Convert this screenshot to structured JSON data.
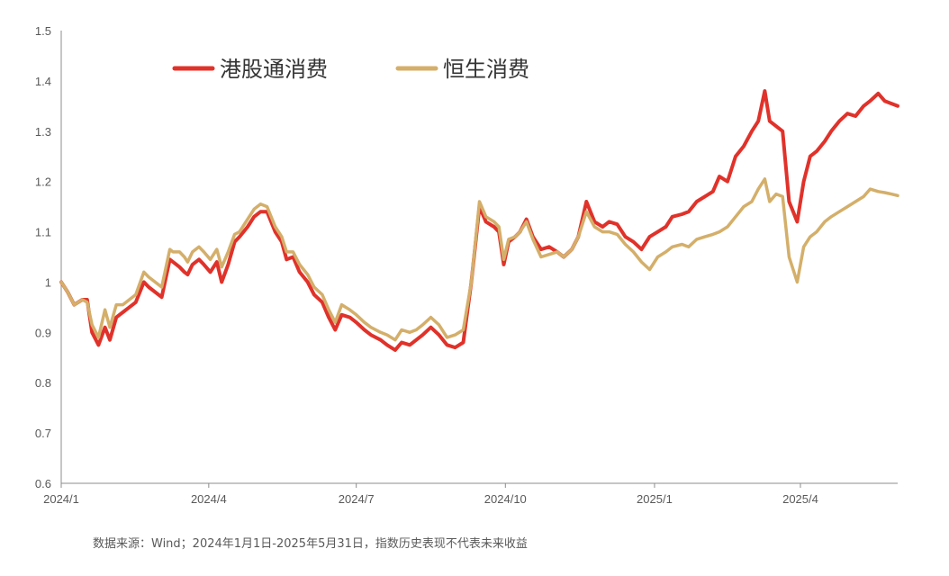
{
  "chart_data": {
    "type": "line",
    "title": "",
    "xlabel": "",
    "ylabel": "",
    "ylim": [
      0.6,
      1.5
    ],
    "yticks": [
      "0.6",
      "0.7",
      "0.8",
      "0.9",
      "1",
      "1.1",
      "1.2",
      "1.3",
      "1.4",
      "1.5"
    ],
    "xlim": [
      "2024-01-01",
      "2025-05-31"
    ],
    "xticks": [
      {
        "label": "2024/1",
        "date": "2024-01-01"
      },
      {
        "label": "2024/4",
        "date": "2024-04-01"
      },
      {
        "label": "2024/7",
        "date": "2024-07-01"
      },
      {
        "label": "2024/10",
        "date": "2024-10-01"
      },
      {
        "label": "2025/1",
        "date": "2025-01-01"
      },
      {
        "label": "2025/4",
        "date": "2025-04-01"
      }
    ],
    "grid": false,
    "legend_position": "top-left",
    "series": [
      {
        "name": "港股通消费",
        "color": "#E0322A",
        "x": [
          "2024-01-01",
          "2024-01-05",
          "2024-01-09",
          "2024-01-14",
          "2024-01-17",
          "2024-01-20",
          "2024-01-24",
          "2024-01-28",
          "2024-01-31",
          "2024-02-04",
          "2024-02-08",
          "2024-02-12",
          "2024-02-16",
          "2024-02-21",
          "2024-02-24",
          "2024-03-03",
          "2024-03-08",
          "2024-03-10",
          "2024-03-14",
          "2024-03-17",
          "2024-03-19",
          "2024-03-22",
          "2024-03-26",
          "2024-03-29",
          "2024-04-02",
          "2024-04-06",
          "2024-04-09",
          "2024-04-13",
          "2024-04-17",
          "2024-04-20",
          "2024-04-25",
          "2024-04-29",
          "2024-05-03",
          "2024-05-07",
          "2024-05-12",
          "2024-05-16",
          "2024-05-19",
          "2024-05-23",
          "2024-05-27",
          "2024-06-01",
          "2024-06-05",
          "2024-06-10",
          "2024-06-14",
          "2024-06-18",
          "2024-06-22",
          "2024-06-27",
          "2024-07-01",
          "2024-07-06",
          "2024-07-10",
          "2024-07-16",
          "2024-07-20",
          "2024-07-25",
          "2024-07-29",
          "2024-08-03",
          "2024-08-07",
          "2024-08-11",
          "2024-08-16",
          "2024-08-21",
          "2024-08-26",
          "2024-08-31",
          "2024-09-05",
          "2024-09-10",
          "2024-09-15",
          "2024-09-19",
          "2024-09-24",
          "2024-09-27",
          "2024-09-30",
          "2024-10-03",
          "2024-10-07",
          "2024-10-10",
          "2024-10-14",
          "2024-10-18",
          "2024-10-23",
          "2024-10-28",
          "2024-11-02",
          "2024-11-06",
          "2024-11-11",
          "2024-11-15",
          "2024-11-20",
          "2024-11-25",
          "2024-11-30",
          "2024-12-04",
          "2024-12-09",
          "2024-12-14",
          "2024-12-19",
          "2024-12-24",
          "2024-12-29",
          "2025-01-03",
          "2025-01-08",
          "2025-01-12",
          "2025-01-18",
          "2025-01-22",
          "2025-01-27",
          "2025-02-01",
          "2025-02-06",
          "2025-02-10",
          "2025-02-15",
          "2025-02-20",
          "2025-02-25",
          "2025-03-02",
          "2025-03-06",
          "2025-03-10",
          "2025-03-13",
          "2025-03-17",
          "2025-03-21",
          "2025-03-25",
          "2025-03-30",
          "2025-04-03",
          "2025-04-07",
          "2025-04-11",
          "2025-04-16",
          "2025-04-20",
          "2025-04-25",
          "2025-04-30",
          "2025-05-05",
          "2025-05-10",
          "2025-05-14",
          "2025-05-19",
          "2025-05-23",
          "2025-05-27",
          "2025-05-31"
        ],
        "y": [
          1.0,
          0.98,
          0.955,
          0.965,
          0.965,
          0.9,
          0.875,
          0.91,
          0.885,
          0.93,
          0.94,
          0.95,
          0.96,
          1.0,
          0.99,
          0.97,
          1.045,
          1.04,
          1.03,
          1.02,
          1.015,
          1.035,
          1.045,
          1.035,
          1.02,
          1.04,
          1.0,
          1.035,
          1.08,
          1.09,
          1.11,
          1.13,
          1.14,
          1.14,
          1.1,
          1.08,
          1.045,
          1.05,
          1.02,
          1.0,
          0.975,
          0.96,
          0.93,
          0.905,
          0.935,
          0.93,
          0.92,
          0.905,
          0.895,
          0.885,
          0.875,
          0.865,
          0.88,
          0.875,
          0.885,
          0.895,
          0.91,
          0.895,
          0.875,
          0.87,
          0.88,
          1.0,
          1.15,
          1.12,
          1.11,
          1.1,
          1.035,
          1.08,
          1.09,
          1.1,
          1.125,
          1.09,
          1.065,
          1.07,
          1.06,
          1.05,
          1.065,
          1.09,
          1.16,
          1.12,
          1.11,
          1.12,
          1.115,
          1.09,
          1.08,
          1.065,
          1.09,
          1.1,
          1.11,
          1.13,
          1.135,
          1.14,
          1.16,
          1.17,
          1.18,
          1.21,
          1.2,
          1.25,
          1.27,
          1.3,
          1.32,
          1.38,
          1.32,
          1.31,
          1.3,
          1.16,
          1.12,
          1.2,
          1.25,
          1.26,
          1.28,
          1.3,
          1.32,
          1.335,
          1.33,
          1.35,
          1.36,
          1.375,
          1.36,
          1.355,
          1.35
        ]
      },
      {
        "name": "恒生消费",
        "color": "#D4AF6A",
        "x": [
          "2024-01-01",
          "2024-01-05",
          "2024-01-09",
          "2024-01-14",
          "2024-01-17",
          "2024-01-20",
          "2024-01-24",
          "2024-01-28",
          "2024-01-31",
          "2024-02-04",
          "2024-02-08",
          "2024-02-12",
          "2024-02-16",
          "2024-02-21",
          "2024-02-24",
          "2024-03-03",
          "2024-03-08",
          "2024-03-10",
          "2024-03-14",
          "2024-03-17",
          "2024-03-19",
          "2024-03-22",
          "2024-03-26",
          "2024-03-29",
          "2024-04-02",
          "2024-04-06",
          "2024-04-09",
          "2024-04-13",
          "2024-04-17",
          "2024-04-20",
          "2024-04-25",
          "2024-04-29",
          "2024-05-03",
          "2024-05-07",
          "2024-05-12",
          "2024-05-16",
          "2024-05-19",
          "2024-05-23",
          "2024-05-27",
          "2024-06-01",
          "2024-06-05",
          "2024-06-10",
          "2024-06-14",
          "2024-06-18",
          "2024-06-22",
          "2024-06-27",
          "2024-07-01",
          "2024-07-06",
          "2024-07-10",
          "2024-07-16",
          "2024-07-20",
          "2024-07-25",
          "2024-07-29",
          "2024-08-03",
          "2024-08-07",
          "2024-08-11",
          "2024-08-16",
          "2024-08-21",
          "2024-08-26",
          "2024-08-31",
          "2024-09-05",
          "2024-09-10",
          "2024-09-15",
          "2024-09-19",
          "2024-09-24",
          "2024-09-27",
          "2024-09-30",
          "2024-10-03",
          "2024-10-07",
          "2024-10-10",
          "2024-10-14",
          "2024-10-18",
          "2024-10-23",
          "2024-10-28",
          "2024-11-02",
          "2024-11-06",
          "2024-11-11",
          "2024-11-15",
          "2024-11-20",
          "2024-11-25",
          "2024-11-30",
          "2024-12-04",
          "2024-12-09",
          "2024-12-14",
          "2024-12-19",
          "2024-12-24",
          "2024-12-29",
          "2025-01-03",
          "2025-01-08",
          "2025-01-12",
          "2025-01-18",
          "2025-01-22",
          "2025-01-27",
          "2025-02-01",
          "2025-02-06",
          "2025-02-10",
          "2025-02-15",
          "2025-02-20",
          "2025-02-25",
          "2025-03-02",
          "2025-03-06",
          "2025-03-10",
          "2025-03-13",
          "2025-03-17",
          "2025-03-21",
          "2025-03-25",
          "2025-03-30",
          "2025-04-03",
          "2025-04-07",
          "2025-04-11",
          "2025-04-16",
          "2025-04-20",
          "2025-04-25",
          "2025-04-30",
          "2025-05-05",
          "2025-05-10",
          "2025-05-14",
          "2025-05-19",
          "2025-05-23",
          "2025-05-27",
          "2025-05-31"
        ],
        "y": [
          1.0,
          0.98,
          0.955,
          0.965,
          0.96,
          0.915,
          0.89,
          0.945,
          0.91,
          0.955,
          0.955,
          0.965,
          0.975,
          1.02,
          1.01,
          0.99,
          1.065,
          1.06,
          1.06,
          1.05,
          1.04,
          1.06,
          1.07,
          1.06,
          1.045,
          1.065,
          1.03,
          1.06,
          1.095,
          1.1,
          1.125,
          1.145,
          1.155,
          1.15,
          1.11,
          1.09,
          1.06,
          1.06,
          1.035,
          1.015,
          0.99,
          0.975,
          0.945,
          0.92,
          0.955,
          0.945,
          0.935,
          0.92,
          0.91,
          0.9,
          0.895,
          0.885,
          0.905,
          0.9,
          0.905,
          0.915,
          0.93,
          0.915,
          0.89,
          0.895,
          0.905,
          1.0,
          1.16,
          1.13,
          1.12,
          1.11,
          1.045,
          1.085,
          1.09,
          1.1,
          1.12,
          1.085,
          1.05,
          1.055,
          1.06,
          1.05,
          1.065,
          1.09,
          1.14,
          1.11,
          1.1,
          1.1,
          1.095,
          1.075,
          1.06,
          1.04,
          1.025,
          1.05,
          1.06,
          1.07,
          1.075,
          1.07,
          1.085,
          1.09,
          1.095,
          1.1,
          1.11,
          1.13,
          1.15,
          1.16,
          1.185,
          1.205,
          1.16,
          1.175,
          1.17,
          1.05,
          1.0,
          1.07,
          1.09,
          1.1,
          1.12,
          1.13,
          1.14,
          1.15,
          1.16,
          1.17,
          1.185,
          1.18,
          1.178,
          1.175,
          1.172
        ]
      }
    ]
  },
  "source_note": "数据来源：Wind；2024年1月1日-2025年5月31日，指数历史表现不代表未来收益"
}
